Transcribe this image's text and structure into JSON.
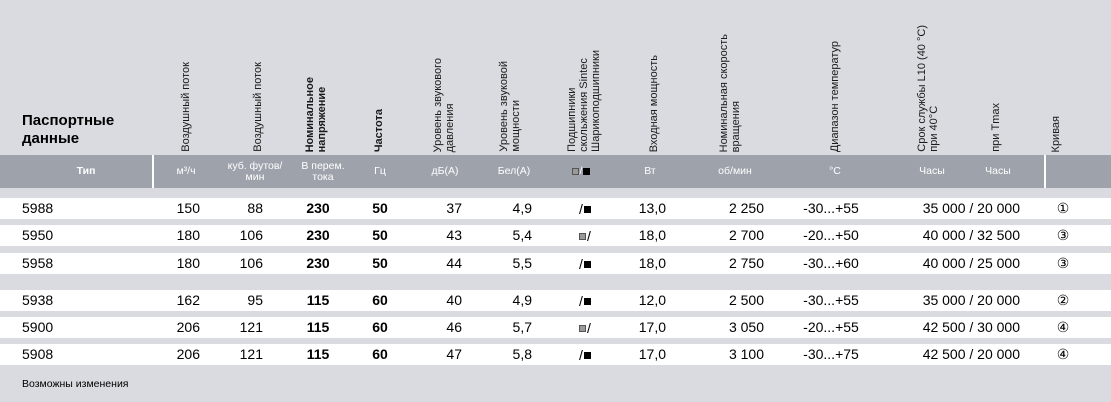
{
  "title": "Паспортные данные",
  "headers": {
    "airflow1": "Воздушный поток",
    "airflow2": "Воздушный поток",
    "voltage": "Номинальное напряжение",
    "frequency": "Частота",
    "sound_pressure": "Уровень звукового давления",
    "sound_power": "Уровень звуковой мощности",
    "bearings": "Подшипники скольжения Sintec Шарикоподшипники",
    "power_input": "Входная мощность",
    "speed": "Номинальная скорость вращения",
    "temp_range": "Диапазон температур",
    "life": "Срок службы L10 (40 °C) при 40°C",
    "life_tmax": "при Tmax",
    "curve": "Кривая"
  },
  "units": {
    "type": "Тип",
    "airflow1": "м³/ч",
    "airflow2": "куб. футов/ мин",
    "voltage": "В перем. тока",
    "frequency": "Гц",
    "sound_pressure": "дБ(А)",
    "sound_power": "Бел(А)",
    "power": "Вт",
    "speed": "об/мин",
    "temp": "°C",
    "hours1": "Часы",
    "hours2": "Часы"
  },
  "rows": [
    {
      "type": "5988",
      "m3h": "150",
      "cfm": "88",
      "voltage": "230",
      "freq": "50",
      "dba": "37",
      "bela": "4,9",
      "bearing": "ball",
      "power": "13,0",
      "rpm": "2 250",
      "temp": "-30...+55",
      "life": "35 000 / 20 000",
      "curve": "①"
    },
    {
      "type": "5950",
      "m3h": "180",
      "cfm": "106",
      "voltage": "230",
      "freq": "50",
      "dba": "43",
      "bela": "5,4",
      "bearing": "sleeve",
      "power": "18,0",
      "rpm": "2 700",
      "temp": "-20...+50",
      "life": "40 000 / 32 500",
      "curve": "③"
    },
    {
      "type": "5958",
      "m3h": "180",
      "cfm": "106",
      "voltage": "230",
      "freq": "50",
      "dba": "44",
      "bela": "5,5",
      "bearing": "ball",
      "power": "18,0",
      "rpm": "2 750",
      "temp": "-30...+60",
      "life": "40 000 / 25 000",
      "curve": "③"
    },
    {
      "type": "5938",
      "m3h": "162",
      "cfm": "95",
      "voltage": "115",
      "freq": "60",
      "dba": "40",
      "bela": "4,9",
      "bearing": "ball",
      "power": "12,0",
      "rpm": "2 500",
      "temp": "-30...+55",
      "life": "35 000 / 20 000",
      "curve": "②"
    },
    {
      "type": "5900",
      "m3h": "206",
      "cfm": "121",
      "voltage": "115",
      "freq": "60",
      "dba": "46",
      "bela": "5,7",
      "bearing": "sleeve",
      "power": "17,0",
      "rpm": "3 050",
      "temp": "-20...+55",
      "life": "42 500 / 30 000",
      "curve": "④"
    },
    {
      "type": "5908",
      "m3h": "206",
      "cfm": "121",
      "voltage": "115",
      "freq": "60",
      "dba": "47",
      "bela": "5,8",
      "bearing": "ball",
      "power": "17,0",
      "rpm": "3 100",
      "temp": "-30...+75",
      "life": "42 500 / 20 000",
      "curve": "④"
    }
  ],
  "footer": "Возможны изменения"
}
